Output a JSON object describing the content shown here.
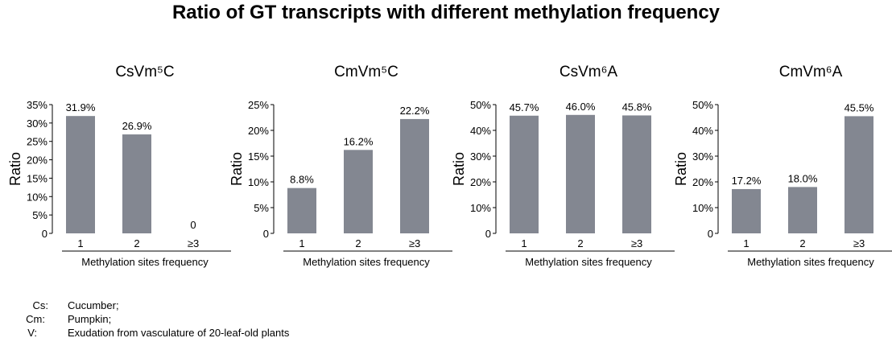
{
  "title": "Ratio of GT transcripts with different methylation frequency",
  "colors": {
    "bar": "#838791",
    "axis": "#000000"
  },
  "chart_data": [
    {
      "type": "bar",
      "title": "CsVm⁵C",
      "categories": [
        "1",
        "2",
        "≥3"
      ],
      "values": [
        31.9,
        26.9,
        0
      ],
      "value_labels": [
        "31.9%",
        "26.9%",
        "0"
      ],
      "ylim": [
        0,
        35
      ],
      "yticks": [
        0,
        5,
        10,
        15,
        20,
        25,
        30,
        35
      ],
      "ytick_labels": [
        "0",
        "5%",
        "10%",
        "15%",
        "20%",
        "25%",
        "30%",
        "35%"
      ],
      "xlabel": "Methylation sites frequency",
      "ylabel": "Ratio"
    },
    {
      "type": "bar",
      "title": "CmVm⁵C",
      "categories": [
        "1",
        "2",
        "≥3"
      ],
      "values": [
        8.8,
        16.2,
        22.2
      ],
      "value_labels": [
        "8.8%",
        "16.2%",
        "22.2%"
      ],
      "ylim": [
        0,
        25
      ],
      "yticks": [
        0,
        5,
        10,
        15,
        20,
        25
      ],
      "ytick_labels": [
        "0",
        "5%",
        "10%",
        "15%",
        "20%",
        "25%"
      ],
      "xlabel": "Methylation sites frequency",
      "ylabel": "Ratio"
    },
    {
      "type": "bar",
      "title": "CsVm⁶A",
      "categories": [
        "1",
        "2",
        "≥3"
      ],
      "values": [
        45.7,
        46.0,
        45.8
      ],
      "value_labels": [
        "45.7%",
        "46.0%",
        "45.8%"
      ],
      "ylim": [
        0,
        50
      ],
      "yticks": [
        0,
        10,
        20,
        30,
        40,
        50
      ],
      "ytick_labels": [
        "0",
        "10%",
        "20%",
        "30%",
        "40%",
        "50%"
      ],
      "xlabel": "Methylation sites frequency",
      "ylabel": "Ratio"
    },
    {
      "type": "bar",
      "title": "CmVm⁶A",
      "categories": [
        "1",
        "2",
        "≥3"
      ],
      "values": [
        17.2,
        18.0,
        45.5
      ],
      "value_labels": [
        "17.2%",
        "18.0%",
        "45.5%"
      ],
      "ylim": [
        0,
        50
      ],
      "yticks": [
        0,
        10,
        20,
        30,
        40,
        50
      ],
      "ytick_labels": [
        "0",
        "10%",
        "20%",
        "30%",
        "40%",
        "50%"
      ],
      "xlabel": "Methylation sites frequency",
      "ylabel": "Ratio"
    }
  ],
  "footnotes": [
    {
      "key": "Cs:",
      "text": "Cucumber;"
    },
    {
      "key": "Cm:",
      "text": "Pumpkin;"
    },
    {
      "key": "V:",
      "text": "Exudation from vasculature of 20-leaf-old plants"
    }
  ]
}
